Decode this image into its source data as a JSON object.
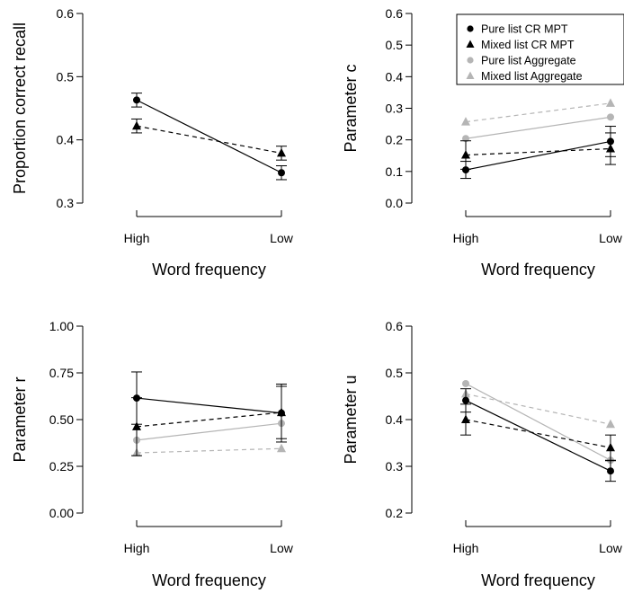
{
  "chart_data": [
    {
      "type": "line",
      "categories": [
        "High",
        "Low"
      ],
      "xlabel": "Word frequency",
      "ylabel": "Proportion correct recall",
      "ylim": [
        0.3,
        0.6
      ],
      "yticks": [
        0.3,
        0.4,
        0.5,
        0.6
      ],
      "ytick_labels": [
        "0.3",
        "0.4",
        "0.5",
        "0.6"
      ],
      "legend": false,
      "series": [
        {
          "name": "Pure list CR MPT",
          "values": [
            0.463,
            0.348
          ],
          "err": [
            0.011,
            0.011
          ],
          "color": "#000000",
          "marker": "circle",
          "dash": false
        },
        {
          "name": "Mixed list CR MPT",
          "values": [
            0.422,
            0.379
          ],
          "err": [
            0.011,
            0.011
          ],
          "color": "#000000",
          "marker": "triangle",
          "dash": true
        }
      ]
    },
    {
      "type": "line",
      "categories": [
        "High",
        "Low"
      ],
      "xlabel": "Word frequency",
      "ylabel": "Parameter c",
      "ylim": [
        0.0,
        0.6
      ],
      "yticks": [
        0.0,
        0.1,
        0.2,
        0.3,
        0.4,
        0.5,
        0.6
      ],
      "ytick_labels": [
        "0.0",
        "0.1",
        "0.2",
        "0.3",
        "0.4",
        "0.5",
        "0.6"
      ],
      "legend": true,
      "legend_position": "top-right",
      "series": [
        {
          "name": "Pure list CR MPT",
          "values": [
            0.105,
            0.195
          ],
          "err": [
            0.027,
            0.048
          ],
          "color": "#000000",
          "marker": "circle",
          "dash": false
        },
        {
          "name": "Mixed list CR MPT",
          "values": [
            0.152,
            0.172
          ],
          "err": [
            0.045,
            0.05
          ],
          "color": "#000000",
          "marker": "triangle",
          "dash": true
        },
        {
          "name": "Pure list Aggregate",
          "values": [
            0.204,
            0.272
          ],
          "err": null,
          "color": "#b5b5b5",
          "marker": "circle",
          "dash": false
        },
        {
          "name": "Mixed list Aggregate",
          "values": [
            0.257,
            0.316
          ],
          "err": null,
          "color": "#b5b5b5",
          "marker": "triangle",
          "dash": true
        }
      ]
    },
    {
      "type": "line",
      "categories": [
        "High",
        "Low"
      ],
      "xlabel": "Word frequency",
      "ylabel": "Parameter r",
      "ylim": [
        0.0,
        1.0
      ],
      "yticks": [
        0.0,
        0.25,
        0.5,
        0.75,
        1.0
      ],
      "ytick_labels": [
        "0.00",
        "0.25",
        "0.50",
        "0.75",
        "1.00"
      ],
      "legend": false,
      "series": [
        {
          "name": "Pure list CR MPT",
          "values": [
            0.615,
            0.535
          ],
          "err": [
            0.14,
            0.155
          ],
          "color": "#000000",
          "marker": "circle",
          "dash": false
        },
        {
          "name": "Mixed list CR MPT",
          "values": [
            0.462,
            0.538
          ],
          "err": [
            0.155,
            0.14
          ],
          "color": "#000000",
          "marker": "triangle",
          "dash": true
        },
        {
          "name": "Pure list Aggregate",
          "values": [
            0.39,
            0.48
          ],
          "err": null,
          "color": "#b5b5b5",
          "marker": "circle",
          "dash": false
        },
        {
          "name": "Mixed list Aggregate",
          "values": [
            0.322,
            0.345
          ],
          "err": null,
          "color": "#b5b5b5",
          "marker": "triangle",
          "dash": true
        }
      ]
    },
    {
      "type": "line",
      "categories": [
        "High",
        "Low"
      ],
      "xlabel": "Word frequency",
      "ylabel": "Parameter u",
      "ylim": [
        0.2,
        0.6
      ],
      "yticks": [
        0.2,
        0.3,
        0.4,
        0.5,
        0.6
      ],
      "ytick_labels": [
        "0.2",
        "0.3",
        "0.4",
        "0.5",
        "0.6"
      ],
      "legend": false,
      "series": [
        {
          "name": "Pure list CR MPT",
          "values": [
            0.441,
            0.29
          ],
          "err": [
            0.025,
            0.022
          ],
          "color": "#000000",
          "marker": "circle",
          "dash": false
        },
        {
          "name": "Mixed list CR MPT",
          "values": [
            0.4,
            0.34
          ],
          "err": [
            0.033,
            0.027
          ],
          "color": "#000000",
          "marker": "triangle",
          "dash": true
        },
        {
          "name": "Pure list Aggregate",
          "values": [
            0.477,
            0.313
          ],
          "err": null,
          "color": "#b5b5b5",
          "marker": "circle",
          "dash": false
        },
        {
          "name": "Mixed list Aggregate",
          "values": [
            0.455,
            0.39
          ],
          "err": null,
          "color": "#b5b5b5",
          "marker": "triangle",
          "dash": true
        }
      ]
    }
  ]
}
